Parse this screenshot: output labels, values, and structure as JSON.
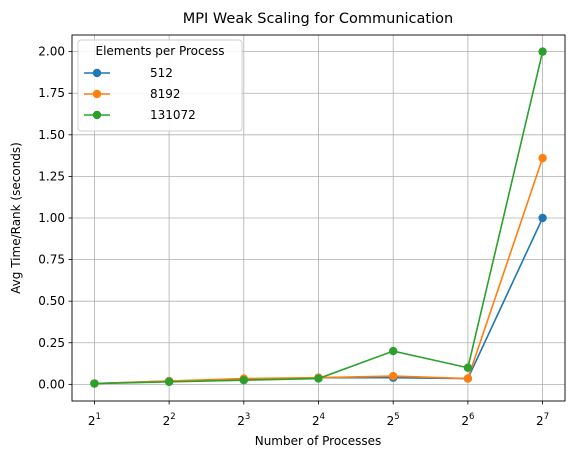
{
  "chart_data": {
    "type": "line",
    "title": "MPI Weak Scaling for Communication",
    "xlabel": "Number of Processes",
    "ylabel": "Avg Time/Rank (seconds)",
    "x_scale": "log2",
    "x": [
      2,
      4,
      8,
      16,
      32,
      64,
      128
    ],
    "x_tick_labels": [
      {
        "base": "2",
        "exp": "1"
      },
      {
        "base": "2",
        "exp": "2"
      },
      {
        "base": "2",
        "exp": "3"
      },
      {
        "base": "2",
        "exp": "4"
      },
      {
        "base": "2",
        "exp": "5"
      },
      {
        "base": "2",
        "exp": "6"
      },
      {
        "base": "2",
        "exp": "7"
      }
    ],
    "ylim": [
      -0.1,
      2.1
    ],
    "y_ticks": [
      0.0,
      0.25,
      0.5,
      0.75,
      1.0,
      1.25,
      1.5,
      1.75,
      2.0
    ],
    "y_tick_labels": [
      "0.00",
      "0.25",
      "0.50",
      "0.75",
      "1.00",
      "1.25",
      "1.50",
      "1.75",
      "2.00"
    ],
    "grid": true,
    "legend": {
      "title": "Elements per Process",
      "placement": "upper-left"
    },
    "series": [
      {
        "name": "512",
        "color": "#1f77b4",
        "values": [
          0.005,
          0.02,
          0.03,
          0.04,
          0.04,
          0.035,
          1.0
        ]
      },
      {
        "name": "8192",
        "color": "#ff7f0e",
        "values": [
          0.005,
          0.02,
          0.035,
          0.04,
          0.05,
          0.035,
          1.36
        ]
      },
      {
        "name": "131072",
        "color": "#2ca02c",
        "values": [
          0.005,
          0.015,
          0.025,
          0.035,
          0.2,
          0.1,
          2.0
        ]
      }
    ]
  }
}
